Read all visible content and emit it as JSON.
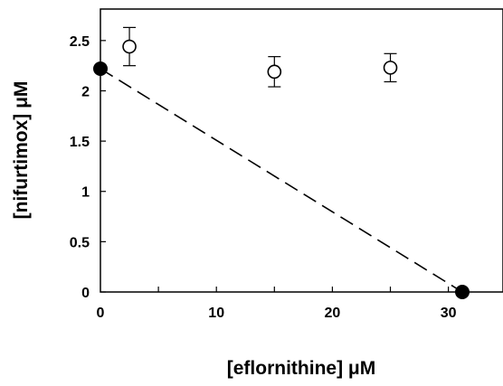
{
  "chart_data": {
    "type": "scatter",
    "xlabel": "[eflornithine] μM",
    "ylabel": "[nifurtimox] μM",
    "xlim": [
      0,
      35
    ],
    "ylim": [
      0,
      2.65
    ],
    "xticks": [
      0,
      10,
      20,
      30
    ],
    "yticks": [
      0,
      0.5,
      1,
      1.5,
      2,
      2.5
    ],
    "xtick_labels": [
      "0",
      "10",
      "20",
      "30"
    ],
    "ytick_labels": [
      "0",
      "0.5",
      "1",
      "1.5",
      "2",
      "2.5"
    ],
    "grid": false,
    "series": [
      {
        "marker": "open-circle",
        "x": [
          2.5,
          15,
          25
        ],
        "y": [
          2.44,
          2.19,
          2.23
        ],
        "error": [
          0.19,
          0.15,
          0.14
        ]
      },
      {
        "marker": "filled-circle",
        "x": [
          0,
          31.2
        ],
        "y": [
          2.22,
          0
        ]
      }
    ],
    "lines": [
      {
        "style": "dashed",
        "x": [
          0,
          31.2
        ],
        "y": [
          2.22,
          0
        ]
      }
    ]
  }
}
